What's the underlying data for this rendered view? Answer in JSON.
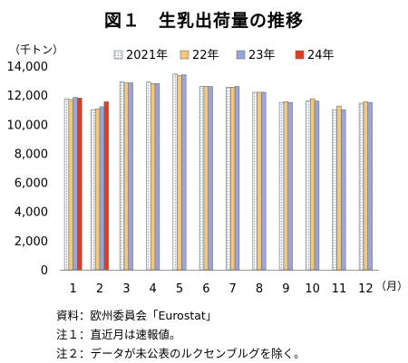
{
  "chart_data": {
    "type": "bar",
    "title": "図１　生乳出荷量の推移",
    "y_unit": "（千トン）",
    "x_unit": "（月）",
    "categories": [
      "1",
      "2",
      "3",
      "4",
      "5",
      "6",
      "7",
      "8",
      "9",
      "10",
      "11",
      "12"
    ],
    "ylim": [
      0,
      14000
    ],
    "yticks": [
      "0",
      "2,000",
      "4,000",
      "6,000",
      "8,000",
      "10,000",
      "12,000",
      "14,000"
    ],
    "grid": false,
    "legend_position": "top",
    "series": [
      {
        "name": "2021年",
        "color": "#eef4fa",
        "pattern": "dots",
        "values": [
          11750,
          11000,
          12900,
          12900,
          13450,
          12600,
          12550,
          12200,
          11500,
          11600,
          11000,
          11450
        ]
      },
      {
        "name": "22年",
        "color": "#f5c77a",
        "pattern": "none",
        "values": [
          11700,
          11050,
          12850,
          12800,
          13350,
          12600,
          12550,
          12200,
          11550,
          11750,
          11250,
          11550
        ]
      },
      {
        "name": "23年",
        "color": "#9aa6d8",
        "pattern": "none",
        "values": [
          11850,
          11200,
          12850,
          12800,
          13400,
          12600,
          12600,
          12200,
          11500,
          11600,
          11000,
          11500
        ]
      },
      {
        "name": "24年",
        "color": "#e23b1f",
        "pattern": "none",
        "values": [
          11800,
          11550,
          null,
          null,
          null,
          null,
          null,
          null,
          null,
          null,
          null,
          null
        ]
      }
    ]
  },
  "notes": [
    "資料：欧州委員会「Eurostat」",
    "注１：直近月は速報値。",
    "注２：データが未公表のルクセンブルグを除く。"
  ]
}
